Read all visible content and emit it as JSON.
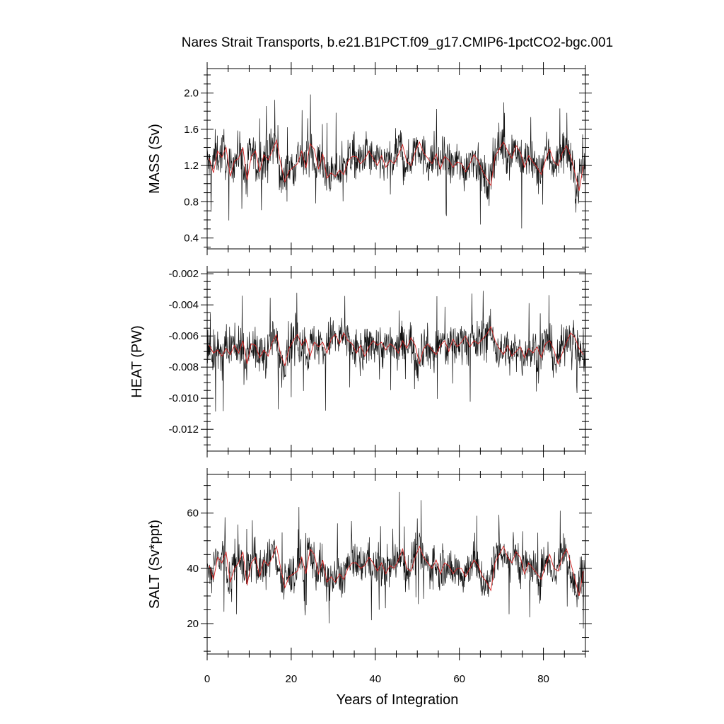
{
  "chart_data": {
    "type": "line",
    "title": "Nares Strait Transports, b.e21.B1PCT.f09_g17.CMIP6-1pctCO2-bgc.001",
    "xlabel": "Years of Integration",
    "xlim": [
      0,
      90
    ],
    "xticks": [
      0,
      20,
      40,
      60,
      80
    ],
    "xtick_labels": [
      "0",
      "20",
      "40",
      "60",
      "80"
    ],
    "series_colors": {
      "monthly": "#111111",
      "annual_mean": "#d62020"
    },
    "panels": [
      {
        "id": "mass",
        "ylabel": "MASS (Sv)",
        "ylim": [
          0.28,
          2.27
        ],
        "yticks": [
          0.4,
          0.8,
          1.2,
          1.6,
          2.0
        ],
        "ytick_labels": [
          "0.4",
          "0.8",
          "1.2",
          "1.6",
          "2.0"
        ],
        "annual_mean": [
          1.28,
          1.12,
          1.36,
          1.29,
          1.4,
          1.08,
          1.25,
          1.28,
          1.4,
          1.04,
          1.3,
          1.36,
          1.13,
          1.32,
          1.26,
          1.36,
          1.48,
          1.22,
          1.02,
          1.14,
          1.18,
          1.22,
          1.36,
          1.17,
          1.44,
          1.38,
          1.16,
          1.33,
          1.06,
          1.12,
          1.08,
          1.15,
          1.1,
          1.25,
          1.3,
          1.3,
          1.22,
          1.27,
          1.36,
          1.28,
          1.2,
          1.31,
          1.18,
          1.26,
          1.22,
          1.32,
          1.43,
          1.24,
          1.2,
          1.35,
          1.46,
          1.34,
          1.28,
          1.22,
          1.33,
          1.16,
          1.3,
          1.26,
          1.18,
          1.24,
          1.22,
          1.13,
          1.22,
          1.32,
          1.25,
          1.14,
          1.06,
          0.98,
          1.3,
          1.38,
          1.46,
          1.36,
          1.28,
          1.42,
          1.35,
          1.18,
          1.31,
          1.24,
          1.18,
          1.1,
          1.26,
          1.38,
          1.24,
          1.2,
          1.34,
          1.42,
          1.3,
          1.12,
          0.92,
          1.2
        ]
      },
      {
        "id": "heat",
        "ylabel": "HEAT (PW)",
        "ylim": [
          -0.0134,
          -0.0019
        ],
        "yticks": [
          -0.012,
          -0.01,
          -0.008,
          -0.006,
          -0.004,
          -0.002
        ],
        "ytick_labels": [
          "-0.012",
          "-0.010",
          "-0.008",
          "-0.006",
          "-0.004",
          "-0.002"
        ],
        "annual_mean": [
          -0.0066,
          -0.0071,
          -0.0069,
          -0.0073,
          -0.0068,
          -0.0072,
          -0.0066,
          -0.0071,
          -0.0063,
          -0.0078,
          -0.0065,
          -0.0066,
          -0.0074,
          -0.0069,
          -0.0073,
          -0.0064,
          -0.0059,
          -0.0072,
          -0.0079,
          -0.0068,
          -0.0063,
          -0.0059,
          -0.0066,
          -0.0062,
          -0.0073,
          -0.0064,
          -0.0067,
          -0.0064,
          -0.0071,
          -0.0062,
          -0.0059,
          -0.0065,
          -0.0058,
          -0.0063,
          -0.0065,
          -0.0071,
          -0.0066,
          -0.0073,
          -0.0067,
          -0.0063,
          -0.0066,
          -0.0064,
          -0.0069,
          -0.0065,
          -0.0067,
          -0.0071,
          -0.0063,
          -0.0068,
          -0.0061,
          -0.0066,
          -0.0078,
          -0.0068,
          -0.0065,
          -0.0069,
          -0.0072,
          -0.0066,
          -0.0063,
          -0.007,
          -0.0062,
          -0.0067,
          -0.0064,
          -0.006,
          -0.0067,
          -0.0063,
          -0.0065,
          -0.0062,
          -0.0059,
          -0.0054,
          -0.0063,
          -0.0068,
          -0.0072,
          -0.0066,
          -0.0073,
          -0.007,
          -0.0067,
          -0.0074,
          -0.0068,
          -0.0071,
          -0.0067,
          -0.0074,
          -0.0065,
          -0.0063,
          -0.0069,
          -0.0078,
          -0.0071,
          -0.0064,
          -0.0058,
          -0.0061,
          -0.0068,
          -0.0072
        ]
      },
      {
        "id": "salt",
        "ylabel": "SALT (Sv*ppt)",
        "ylim": [
          9,
          74
        ],
        "yticks": [
          20,
          40,
          60
        ],
        "ytick_labels": [
          "20",
          "40",
          "60"
        ],
        "annual_mean": [
          41,
          36,
          44,
          42,
          46,
          35,
          40,
          42,
          46,
          34,
          42,
          44,
          37,
          43,
          41,
          44,
          48,
          40,
          33,
          37,
          38,
          39,
          44,
          38,
          47,
          45,
          38,
          43,
          35,
          37,
          35,
          38,
          36,
          40,
          42,
          42,
          40,
          41,
          44,
          42,
          39,
          42,
          38,
          41,
          40,
          43,
          47,
          40,
          39,
          44,
          48,
          44,
          42,
          40,
          43,
          38,
          42,
          41,
          38,
          40,
          40,
          37,
          40,
          43,
          41,
          37,
          35,
          32,
          42,
          45,
          48,
          44,
          42,
          46,
          44,
          38,
          42,
          40,
          38,
          36,
          41,
          45,
          40,
          39,
          44,
          47,
          42,
          36,
          30,
          39
        ]
      }
    ]
  }
}
